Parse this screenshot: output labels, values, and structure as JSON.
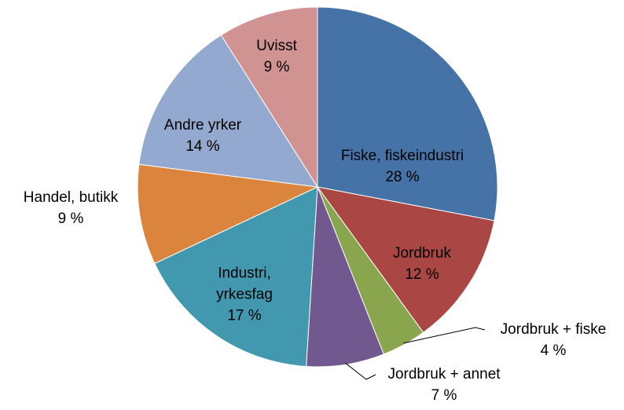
{
  "chart_data": {
    "type": "pie",
    "categories": [
      "Fiske, fiskeindustri",
      "Jordbruk",
      "Jordbruk + fiske",
      "Jordbruk + annet",
      "Industri, yrkesfag",
      "Handel, butikk",
      "Andre yrker",
      "Uvisst"
    ],
    "values": [
      28,
      12,
      4,
      7,
      17,
      9,
      14,
      9
    ],
    "value_labels": [
      "28 %",
      "12 %",
      "4 %",
      "7 %",
      "17 %",
      "9 %",
      "14 %",
      "9 %"
    ],
    "colors": [
      "#4572a7",
      "#aa4643",
      "#89a54e",
      "#71588f",
      "#4198af",
      "#db843d",
      "#93a9cf",
      "#d19392"
    ]
  }
}
